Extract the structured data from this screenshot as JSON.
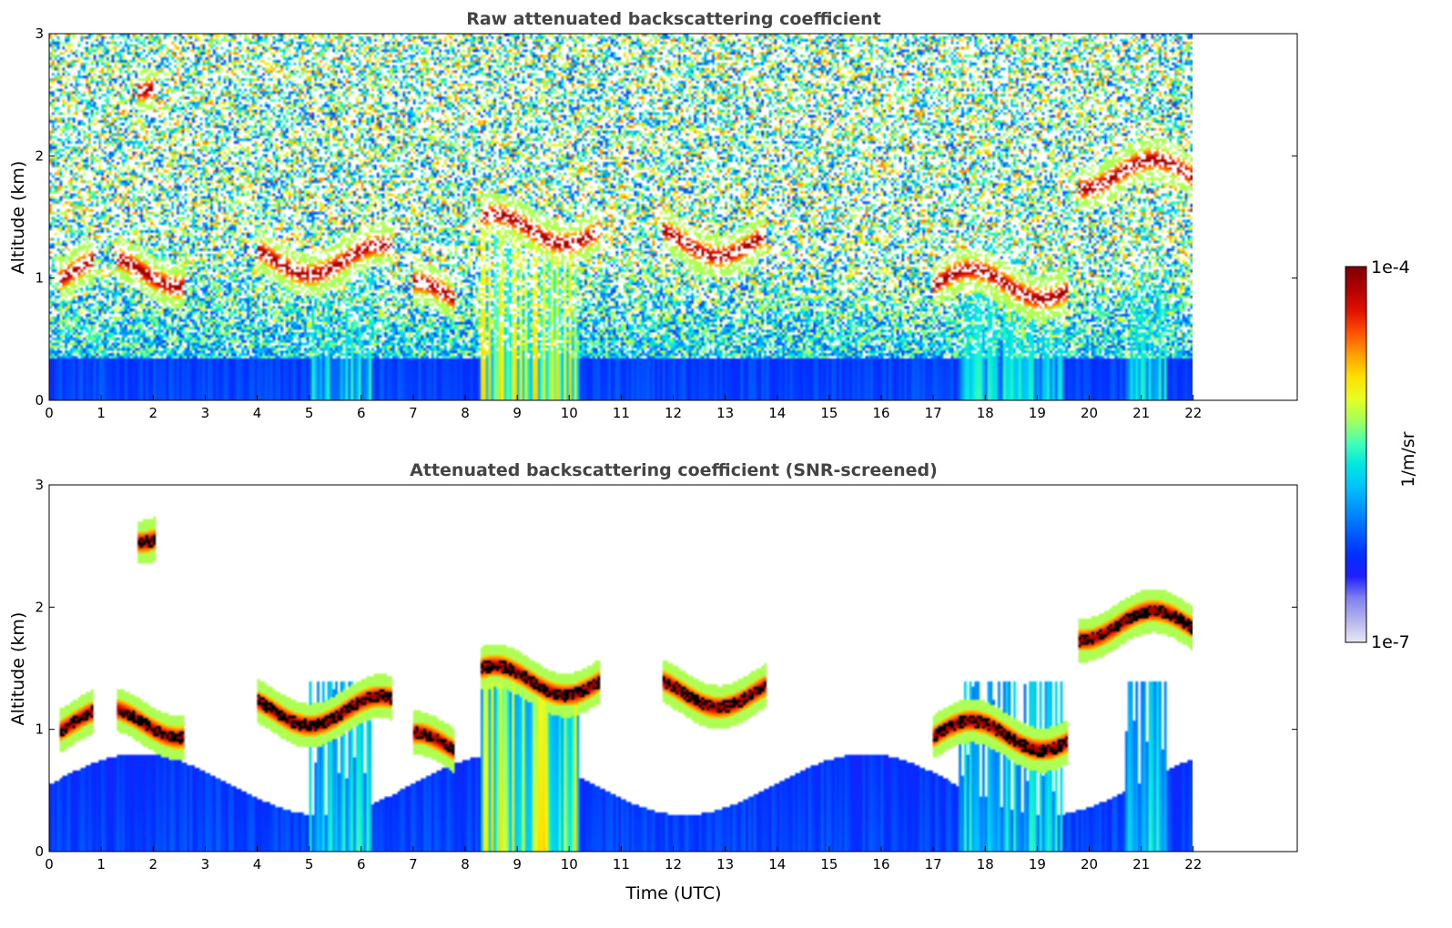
{
  "colors": {
    "colormap": [
      "#e8e8f4",
      "#b4b4ee",
      "#8080f0",
      "#1e1eff",
      "#0030ff",
      "#0060ff",
      "#0090ff",
      "#00c0ff",
      "#00e6e0",
      "#40ffb8",
      "#a0ff60",
      "#e6ff20",
      "#ffe000",
      "#ffa000",
      "#ff5000",
      "#e01000",
      "#b00000",
      "#800000"
    ],
    "cloud_core": "#000000",
    "background": "#ffffff"
  },
  "colorbar": {
    "label": "1/m/sr",
    "min_label": "1e-7",
    "max_label": "1e-4",
    "scale": "log",
    "range": [
      1e-07,
      0.0001
    ]
  },
  "chart_data": [
    {
      "type": "heatmap",
      "title": "Raw attenuated backscattering coefficient",
      "xlabel": "",
      "ylabel": "Altitude (km)",
      "xlim": [
        0,
        24
      ],
      "ylim": [
        0,
        3
      ],
      "data_xrange": [
        0,
        22
      ],
      "xticks": [
        0,
        1,
        2,
        3,
        4,
        5,
        6,
        7,
        8,
        9,
        10,
        11,
        12,
        13,
        14,
        15,
        16,
        17,
        18,
        19,
        20,
        21,
        22
      ],
      "yticks": [
        0,
        1,
        2,
        3
      ],
      "screened": false,
      "cloud_layers": [
        {
          "x": [
            0.2,
            0.85
          ],
          "altitude": 1.05
        },
        {
          "x": [
            1.3,
            2.6
          ],
          "altitude": 1.05
        },
        {
          "x": [
            1.7,
            2.05
          ],
          "altitude": 2.65
        },
        {
          "x": [
            4.0,
            6.6
          ],
          "altitude": 1.15
        },
        {
          "x": [
            7.0,
            7.8
          ],
          "altitude": 0.85
        },
        {
          "x": [
            8.3,
            10.6
          ],
          "altitude": 1.4
        },
        {
          "x": [
            11.8,
            13.8
          ],
          "altitude": 1.3
        },
        {
          "x": [
            17.0,
            19.6
          ],
          "altitude": 0.95
        },
        {
          "x": [
            19.8,
            22.0
          ],
          "altitude": 1.85
        }
      ],
      "precipitation_shafts": [
        {
          "x": [
            8.3,
            10.2
          ],
          "intensity": "high"
        },
        {
          "x": [
            5.0,
            6.2
          ],
          "intensity": "medium"
        },
        {
          "x": [
            17.5,
            19.5
          ],
          "intensity": "medium"
        },
        {
          "x": [
            20.7,
            21.5
          ],
          "intensity": "medium"
        }
      ]
    },
    {
      "type": "heatmap",
      "title": "Attenuated backscattering coefficient (SNR-screened)",
      "xlabel": "Time (UTC)",
      "ylabel": "Altitude (km)",
      "xlim": [
        0,
        24
      ],
      "ylim": [
        0,
        3
      ],
      "data_xrange": [
        0,
        22
      ],
      "xticks": [
        0,
        1,
        2,
        3,
        4,
        5,
        6,
        7,
        8,
        9,
        10,
        11,
        12,
        13,
        14,
        15,
        16,
        17,
        18,
        19,
        20,
        21,
        22
      ],
      "yticks": [
        0,
        1,
        2,
        3
      ],
      "screened": true,
      "cloud_layers": [
        {
          "x": [
            0.2,
            0.85
          ],
          "altitude": 1.05
        },
        {
          "x": [
            1.3,
            2.6
          ],
          "altitude": 1.05
        },
        {
          "x": [
            1.7,
            2.05
          ],
          "altitude": 2.65
        },
        {
          "x": [
            4.0,
            6.6
          ],
          "altitude": 1.15
        },
        {
          "x": [
            7.0,
            7.8
          ],
          "altitude": 0.85
        },
        {
          "x": [
            8.3,
            10.6
          ],
          "altitude": 1.4
        },
        {
          "x": [
            11.8,
            13.8
          ],
          "altitude": 1.3
        },
        {
          "x": [
            17.0,
            19.6
          ],
          "altitude": 0.95
        },
        {
          "x": [
            19.8,
            22.0
          ],
          "altitude": 1.85
        }
      ],
      "precipitation_shafts": [
        {
          "x": [
            8.3,
            10.2
          ],
          "intensity": "high"
        },
        {
          "x": [
            5.0,
            6.2
          ],
          "intensity": "medium"
        },
        {
          "x": [
            17.5,
            19.5
          ],
          "intensity": "medium"
        },
        {
          "x": [
            20.7,
            21.5
          ],
          "intensity": "medium"
        }
      ]
    }
  ]
}
